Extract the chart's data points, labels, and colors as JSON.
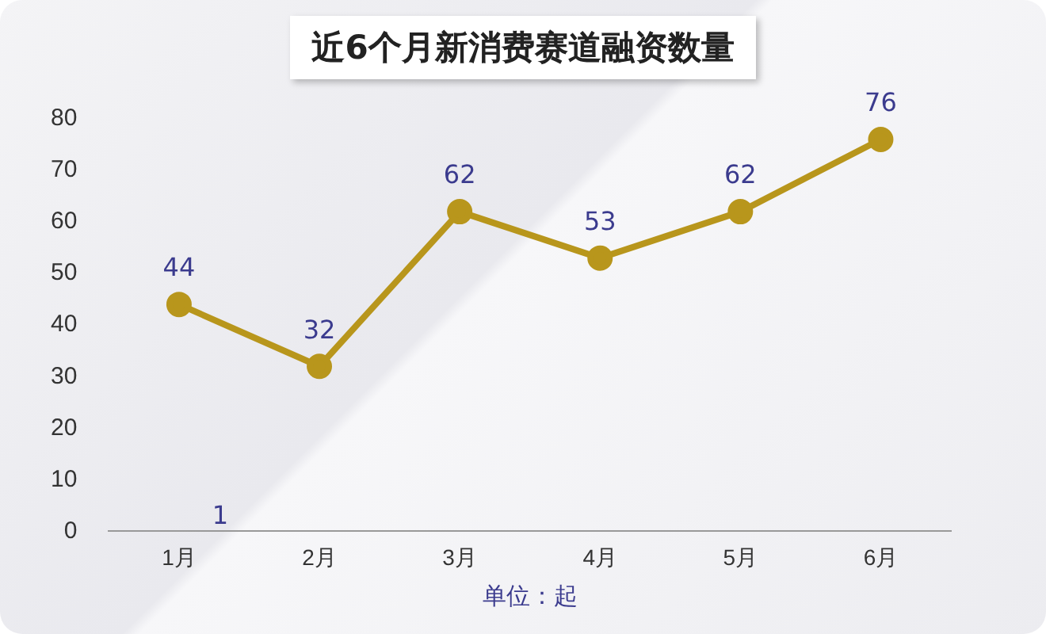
{
  "chart_data": {
    "type": "line",
    "title": "近6个月新消费赛道融资数量",
    "xlabel": "单位：起",
    "categories": [
      "1月",
      "2月",
      "3月",
      "4月",
      "5月",
      "6月"
    ],
    "series": [
      {
        "color": "#b8961c",
        "values": [
          44,
          32,
          62,
          53,
          62,
          76
        ]
      }
    ],
    "ylim": [
      0,
      80
    ],
    "yticks": [
      0,
      10,
      20,
      30,
      40,
      50,
      60,
      70,
      80
    ],
    "grid": false,
    "legend": false,
    "marker": "circle",
    "line_style": "solid",
    "data_labels": true,
    "annotations": [
      "1"
    ]
  }
}
